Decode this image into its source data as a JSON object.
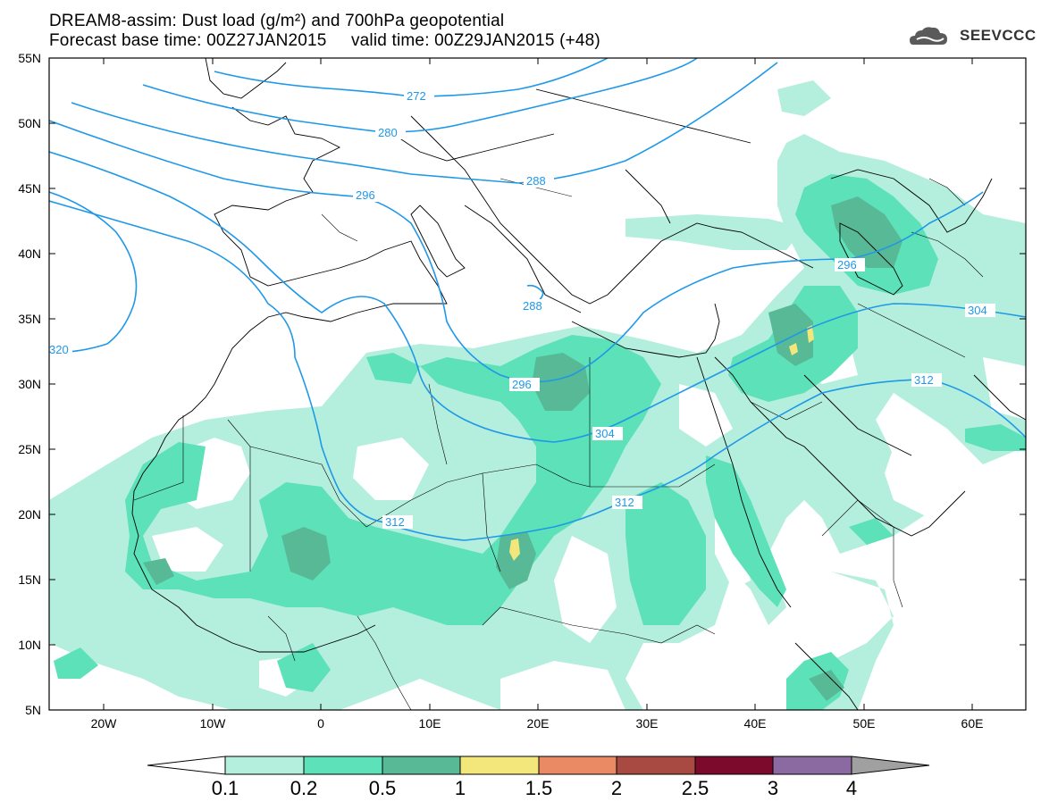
{
  "title": {
    "line1": "DREAM8-assim: Dust load (g/m²) and 700hPa geopotential",
    "line2": "Forecast base time: 00Z27JAN2015     valid time: 00Z29JAN2015 (+48)"
  },
  "logo": {
    "text": "SEEVCCC",
    "icon": "cloud-logo-icon"
  },
  "axes": {
    "lat_labels": [
      "55N",
      "50N",
      "45N",
      "40N",
      "35N",
      "30N",
      "25N",
      "20N",
      "15N",
      "10N",
      "5N"
    ],
    "lon_labels": [
      "20W",
      "10W",
      "0",
      "10E",
      "20E",
      "30E",
      "40E",
      "50E",
      "60E"
    ]
  },
  "contour_labels": [
    "272",
    "280",
    "288",
    "296",
    "288",
    "296",
    "304",
    "312",
    "296",
    "304",
    "312",
    "320",
    "312"
  ],
  "colorbar": {
    "labels": [
      "0.1",
      "0.2",
      "0.5",
      "1",
      "1.5",
      "2",
      "2.5",
      "3",
      "4"
    ],
    "colors": [
      "#b4eedc",
      "#5ce1b8",
      "#57b996",
      "#f3e67a",
      "#e98a64",
      "#a84a42",
      "#7c0a2c",
      "#8a6aa0",
      "#a0a0a0"
    ]
  },
  "colors": {
    "contour": "#1f98e8",
    "border": "#000000",
    "dust_low": "#b4eedc",
    "dust_mid": "#5ce1b8",
    "dust_high": "#57b996",
    "dust_peak": "#f3e67a"
  }
}
